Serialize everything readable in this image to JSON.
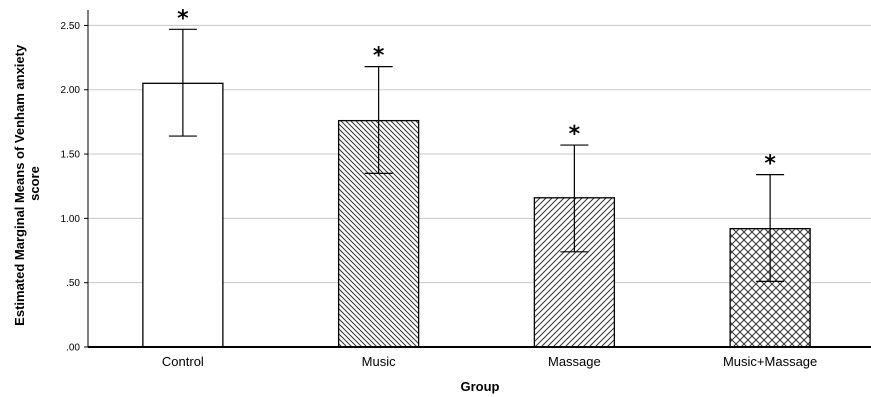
{
  "chart_data": {
    "type": "bar",
    "title": "",
    "xlabel": "Group",
    "ylabel_lines": [
      "Estimated Marginal Means of Venham anxiety",
      "score"
    ],
    "categories": [
      "Control",
      "Music",
      "Massage",
      "Music+Massage"
    ],
    "values": [
      2.05,
      1.76,
      1.16,
      0.92
    ],
    "error_upper": [
      2.47,
      2.18,
      1.57,
      1.34
    ],
    "error_lower": [
      1.64,
      1.35,
      0.74,
      0.51
    ],
    "annotations": [
      "*",
      "*",
      "*",
      "*"
    ],
    "patterns": [
      "none",
      "back-diagonal-dense",
      "diagonal",
      "crosshatch"
    ],
    "yticks": [
      0.0,
      0.5,
      1.0,
      1.5,
      2.0,
      2.5
    ],
    "ytick_labels": [
      ".00",
      ".50",
      "1.00",
      "1.50",
      "2.00",
      "2.50"
    ],
    "ylim": [
      0,
      2.62
    ],
    "grid": true,
    "colors": {
      "bar_fill": "#ffffff",
      "stroke": "#000000",
      "grid": "#c8c8c8",
      "hatch": "#333333"
    }
  }
}
